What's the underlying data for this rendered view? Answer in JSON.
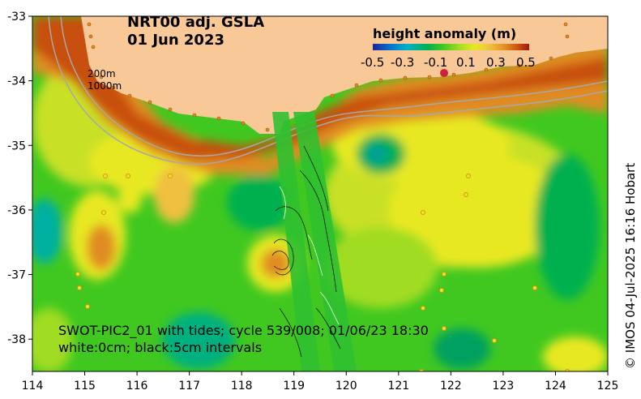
{
  "title": {
    "line1": "NRT00 adj. GSLA",
    "line2": "01 Jun 2023"
  },
  "colorbar": {
    "title": "height anomaly (m)",
    "ticks": [
      "-0.5",
      "-0.3",
      "-0.1",
      "0.1",
      "0.3",
      "0.5"
    ],
    "stops": [
      "#2020a0",
      "#0078d0",
      "#00b0c8",
      "#00b050",
      "#40c820",
      "#a0dc20",
      "#e8e820",
      "#f0c040",
      "#e08c20",
      "#c85010",
      "#a01818"
    ]
  },
  "bathymetry_labels": [
    "200m",
    "1000m"
  ],
  "swath_note": {
    "line1": "SWOT-PIC2_01 with tides; cycle 539/008; 01/06/23 18:30",
    "line2": "white:0cm; black:5cm intervals"
  },
  "credit": "© IMOS 04-Jul-2025 16:16 Hobart",
  "axes": {
    "x_ticks": [
      "114",
      "115",
      "116",
      "117",
      "118",
      "119",
      "120",
      "121",
      "122",
      "123",
      "124",
      "125"
    ],
    "y_ticks": [
      "-33",
      "-34",
      "-35",
      "-36",
      "-37",
      "-38"
    ],
    "lon_range": [
      114,
      125
    ],
    "lat_range": [
      -38.5,
      -33
    ]
  },
  "colors": {
    "land": "#f8c896",
    "coast_orange": "#e08c20",
    "background_green": "#40c820"
  }
}
